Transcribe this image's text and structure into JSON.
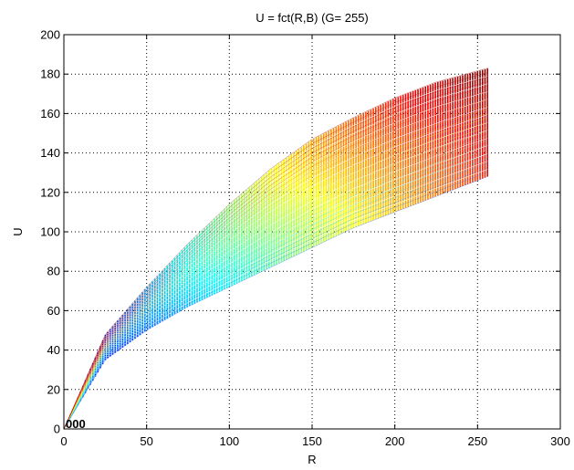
{
  "chart_data": {
    "type": "line",
    "title": "U = fct(R,B) (G= 255)",
    "xlabel": "R",
    "ylabel": "U",
    "xlim": [
      0,
      300
    ],
    "ylim": [
      0,
      200
    ],
    "xticks": [
      "0",
      "50",
      "100",
      "150",
      "200",
      "250",
      "300"
    ],
    "yticks": [
      "0",
      "20",
      "40",
      "60",
      "80",
      "100",
      "120",
      "140",
      "160",
      "180",
      "200"
    ],
    "grid": true,
    "grid_style": "dotted",
    "colormap": "jet",
    "series_family": "one curve per B value, B from 0 to 255; U rises with R; color encodes B (blue low, red high)",
    "series_envelope": {
      "upper": {
        "x": [
          0,
          25,
          50,
          75,
          100,
          125,
          150,
          175,
          200,
          225,
          256
        ],
        "y": [
          0,
          48,
          72,
          94,
          114,
          132,
          147,
          158,
          168,
          176,
          183
        ]
      },
      "lower": {
        "x": [
          0,
          25,
          50,
          75,
          100,
          125,
          150,
          175,
          200,
          225,
          256
        ],
        "y": [
          0,
          35,
          50,
          62,
          72,
          82,
          92,
          102,
          110,
          118,
          128
        ]
      }
    },
    "end_value_range": [
      128,
      183
    ],
    "end_x": 256,
    "origin_cluster_label": "000"
  }
}
